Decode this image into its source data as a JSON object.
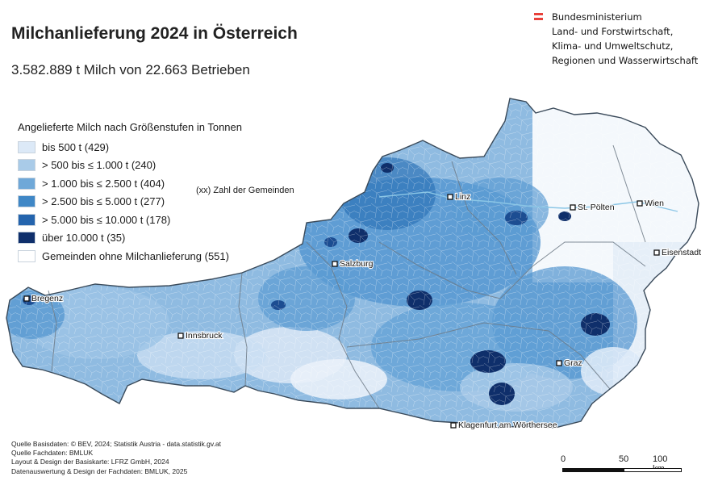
{
  "title": "Milchanlieferung 2024 in Österreich",
  "subtitle": "3.582.889 t Milch von 22.663 Betrieben",
  "ministry": {
    "lines": [
      "Bundesministerium",
      "Land- und Forstwirtschaft,",
      "Klima- und Umweltschutz,",
      "Regionen und Wasserwirtschaft"
    ],
    "flag_colors": [
      "#e8413a",
      "#ffffff",
      "#e8413a"
    ]
  },
  "legend": {
    "title": "Angelieferte Milch nach Größenstufen in Tonnen",
    "items": [
      {
        "label": "bis 500 t (429)",
        "color": "#dce9f7"
      },
      {
        "label": "> 500 bis ≤ 1.000 t (240)",
        "color": "#a9cbe8"
      },
      {
        "label": "> 1.000 bis ≤ 2.500 t (404)",
        "color": "#6fa8d8"
      },
      {
        "label": "> 2.500 bis ≤ 5.000 t (277)",
        "color": "#3f87c6"
      },
      {
        "label": "> 5.000 bis ≤ 10.000 t (178)",
        "color": "#2464ad"
      },
      {
        "label": "über 10.000 t (35)",
        "color": "#0f2f6b"
      },
      {
        "label": "Gemeinden ohne Milchanlieferung (551)",
        "color": "#ffffff"
      }
    ],
    "note": "(xx) Zahl der Gemeinden"
  },
  "cities": [
    {
      "name": "Bregenz"
    },
    {
      "name": "Innsbruck"
    },
    {
      "name": "Salzburg"
    },
    {
      "name": "Linz"
    },
    {
      "name": "St. Pölten"
    },
    {
      "name": "Wien"
    },
    {
      "name": "Eisenstadt"
    },
    {
      "name": "Graz"
    },
    {
      "name": "Klagenfurt am Wörthersee"
    }
  ],
  "credits": [
    "Quelle Basisdaten: © BEV, 2024; Statistik Austria - data.statistik.gv.at",
    "Quelle Fachdaten: BMLUK",
    "Layout & Design der Basiskarte: LFRZ GmbH, 2024",
    "Datenauswertung & Design der Fachdaten: BMLUK, 2025"
  ],
  "scale": {
    "labels": [
      "0",
      "50",
      "100 km"
    ]
  }
}
